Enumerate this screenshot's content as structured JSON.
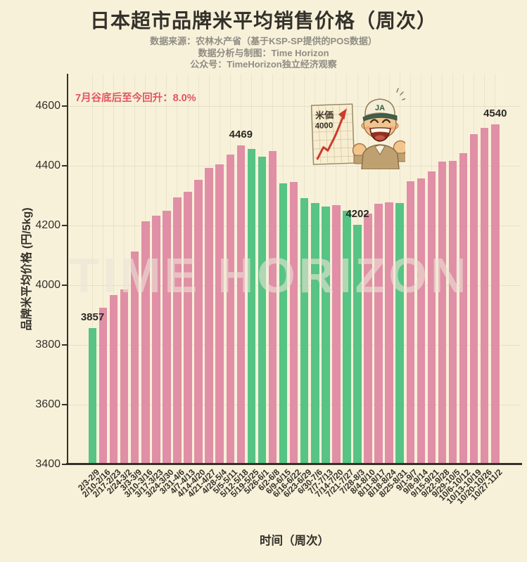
{
  "title": "日本超市品牌米平均销售价格（周次）",
  "subtitle_lines": [
    "数据来源：农林水产省（基于KSP-SP提供的POS数据）",
    "数据分析与制图：Time Horizon",
    "公众号：TimeHorizon独立经济观察"
  ],
  "annotation": "7月谷底后至今回升：8.0%",
  "watermark": "TIME HORIZON",
  "mascot": {
    "sign_title": "米価",
    "sign_value": "4000",
    "cap_label": "JA"
  },
  "chart_data": {
    "type": "bar",
    "title": "日本超市品牌米平均销售价格（周次）",
    "xlabel": "时间（周次）",
    "ylabel": "品牌米平均价格 (円/5kg)",
    "ylim": [
      3400,
      4706
    ],
    "yticks": [
      3400,
      3600,
      3800,
      4000,
      4200,
      4400,
      4600
    ],
    "grid": "on",
    "categories": [
      "2/3-2/9",
      "2/10-2/16",
      "2/17-2/23",
      "2/24-3/2",
      "3/3-3/9",
      "3/10-3/16",
      "3/17-3/23",
      "3/24-3/30",
      "3/31-4/6",
      "4/7-4/13",
      "4/14-4/20",
      "4/21-4/27",
      "4/28-5/4",
      "5/5-5/11",
      "5/12-5/18",
      "5/19-5/25",
      "5/26-6/1",
      "6/2-6/8",
      "6/9-6/15",
      "6/16-6/22",
      "6/23-6/29",
      "6/30-7/6",
      "7/7-7/13",
      "7/14-7/20",
      "7/21-7/27",
      "7/28-8/3",
      "8/4-8/10",
      "8/11-8/17",
      "8/18-8/24",
      "8/25-8/31",
      "9/1-9/7",
      "9/8-9/14",
      "9/15-9/21",
      "9/22-9/28",
      "9/29-10/5",
      "10/6-10/12",
      "10/13-10/19",
      "10/20-10/26",
      "10/27-11/2"
    ],
    "values": [
      3857,
      3925,
      3966,
      3985,
      4113,
      4215,
      4232,
      4249,
      4294,
      4313,
      4353,
      4393,
      4405,
      4438,
      4469,
      4456,
      4431,
      4449,
      4342,
      4345,
      4292,
      4275,
      4264,
      4268,
      4250,
      4202,
      4240,
      4273,
      4278,
      4276,
      4348,
      4358,
      4381,
      4414,
      4416,
      4442,
      4506,
      4527,
      4540
    ],
    "bar_colors": [
      "green",
      "pink",
      "pink",
      "pink",
      "pink",
      "pink",
      "pink",
      "pink",
      "pink",
      "pink",
      "pink",
      "pink",
      "pink",
      "pink",
      "pink",
      "green",
      "green",
      "pink",
      "green",
      "pink",
      "green",
      "green",
      "green",
      "pink",
      "green",
      "green",
      "pink",
      "pink",
      "pink",
      "green",
      "pink",
      "pink",
      "pink",
      "pink",
      "pink",
      "pink",
      "pink",
      "pink",
      "pink"
    ],
    "value_labels": [
      {
        "index": 0,
        "text": "3857"
      },
      {
        "index": 14,
        "text": "4469"
      },
      {
        "index": 25,
        "text": "4202"
      },
      {
        "index": 38,
        "text": "4540"
      }
    ],
    "colors": {
      "pink": "#e08fa6",
      "green": "#57c385",
      "background": "#f8f1da",
      "axis": "#33312a",
      "annotation": "#e25460",
      "subtitle": "#8f8d83"
    }
  }
}
